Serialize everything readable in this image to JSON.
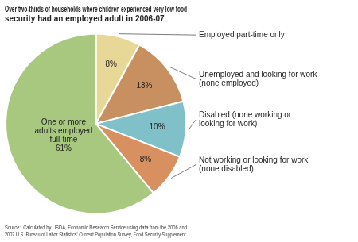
{
  "chart_data": {
    "type": "pie",
    "title": "Over two-thirds of households where children experienced very low food\nsecurity had an employed adult in 2006-07",
    "categories": [
      "Employed part-time only",
      "Unemployed and looking for work\n(none employed)",
      "Disabled (none working or\nlooking for work)",
      "Not working or looking for work\n(none disabled)",
      "One or more\nadults employed\nfull-time"
    ],
    "values": [
      8,
      13,
      10,
      8,
      61
    ],
    "value_labels": [
      "8%",
      "13%",
      "10%",
      "8%",
      "61%"
    ],
    "colors": [
      "#e8d898",
      "#c89060",
      "#80c0c8",
      "#d89060",
      "#a8c880"
    ],
    "data_labels": true,
    "legend": false,
    "annotations": [
      "Source:  Calculated by USDA, Economic Research Service using data from the 2006 and\n2007 U.S. Bureau of Labor Statistics' Current Population Survey, Food Security Supplement."
    ]
  }
}
